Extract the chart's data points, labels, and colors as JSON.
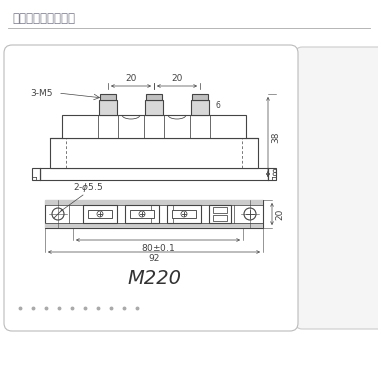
{
  "title": "模块外型图、安装图",
  "model": "M220",
  "bg_color": "#ffffff",
  "line_color": "#444444",
  "title_color": "#7a7a8a",
  "fig_bg": "#ffffff",
  "card_edge": "#cccccc",
  "right_panel_color": "#f0f0f0"
}
